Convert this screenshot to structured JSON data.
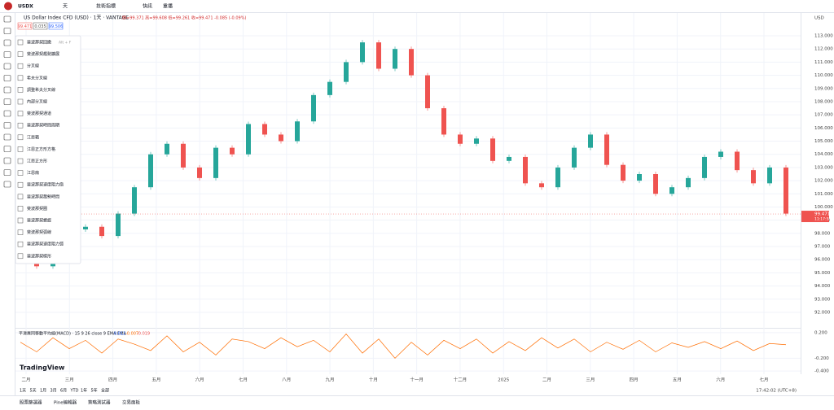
{
  "toolbar": {
    "symbol": "USDX",
    "interval": "天",
    "items": [
      "技術指標",
      "快訊",
      "重播"
    ],
    "currency": "USD"
  },
  "legend": {
    "title": "US Dollar Index CFD (USD) · 1天 · VANTAGE",
    "ohlc": "開=99.371 高=99.608 低=99.261 收=99.471 -0.085 (-0.09%)",
    "price_boxes": [
      "99.471",
      "0.035",
      "99.506"
    ]
  },
  "menu": {
    "items": [
      {
        "label": "斐波那契回撤",
        "shortcut": "Alt + F"
      },
      {
        "label": "斐波那契趨勢擴展"
      },
      {
        "label": "分叉線"
      },
      {
        "label": "希夫分叉線"
      },
      {
        "label": "調整希夫分叉線"
      },
      {
        "label": "內部分叉線"
      },
      {
        "label": "斐波那契通道"
      },
      {
        "label": "斐波那契時間周期"
      },
      {
        "label": "江恩箱"
      },
      {
        "label": "江恩正方形方格"
      },
      {
        "label": "江恩正方形"
      },
      {
        "label": "江恩扇"
      },
      {
        "label": "斐波那契速度阻力扇"
      },
      {
        "label": "斐波那契趨勢時間"
      },
      {
        "label": "斐波那契圈"
      },
      {
        "label": "斐波那契螺旋"
      },
      {
        "label": "斐波那契弧線"
      },
      {
        "label": "斐波那契速度阻力弧"
      },
      {
        "label": "斐波那契楔形"
      }
    ]
  },
  "chart": {
    "ylim": [
      91.5,
      113.7
    ],
    "yticks": [
      {
        "value": 92,
        "label": "92.000"
      },
      {
        "value": 93,
        "label": "93.000"
      },
      {
        "value": 94,
        "label": "94.000"
      },
      {
        "value": 95,
        "label": "95.000"
      },
      {
        "value": 96,
        "label": "96.000"
      },
      {
        "value": 97,
        "label": "97.000"
      },
      {
        "value": 98,
        "label": "98.000"
      },
      {
        "value": 99,
        "label": "99.000"
      },
      {
        "value": 100,
        "label": "100.000"
      },
      {
        "value": 101,
        "label": "101.000"
      },
      {
        "value": 102,
        "label": "102.000"
      },
      {
        "value": 103,
        "label": "103.000"
      },
      {
        "value": 104,
        "label": "104.000"
      },
      {
        "value": 105,
        "label": "105.000"
      },
      {
        "value": 106,
        "label": "106.000"
      },
      {
        "value": 107,
        "label": "107.000"
      },
      {
        "value": 108,
        "label": "108.000"
      },
      {
        "value": 109,
        "label": "109.000"
      },
      {
        "value": 110,
        "label": "110.000"
      },
      {
        "value": 111,
        "label": "111.000"
      },
      {
        "value": 112,
        "label": "112.000"
      },
      {
        "value": 113,
        "label": "113.000"
      }
    ],
    "prices": [
      99.2,
      95.5,
      96.5,
      98.3,
      98.5,
      97.8,
      99.5,
      101.5,
      104,
      104.8,
      103,
      102.2,
      104.5,
      104,
      106.3,
      105.5,
      105,
      106.5,
      108.5,
      109.5,
      111,
      112.5,
      110.5,
      112,
      110,
      107.5,
      105.5,
      104.8,
      105.2,
      103.5,
      103.8,
      101.8,
      101.5,
      103,
      104.5,
      105.5,
      103.2,
      102,
      102.5,
      101,
      101.5,
      102.2,
      103.8,
      104.2,
      102.8,
      101.8,
      103,
      99.5
    ],
    "last_price": {
      "value": 99.471,
      "label": "99.471"
    },
    "countdown": "11:17:58"
  },
  "macd": {
    "legend": "平滑異同移動平均線(MACD) · 15 9 26 close 9 EMA EMA",
    "readings": [
      "0.011",
      "-0.007",
      "-0.019"
    ],
    "ylim": [
      -0.45,
      0.25
    ],
    "yticks": [
      {
        "value": 0.2,
        "label": "0.200"
      },
      {
        "value": -0.2,
        "label": "-0.200"
      },
      {
        "value": -0.4,
        "label": "-0.400"
      }
    ],
    "values": [
      0.05,
      -0.1,
      0.12,
      -0.05,
      0.08,
      -0.12,
      0.1,
      0.02,
      -0.08,
      0.15,
      -0.1,
      0.05,
      -0.15,
      0.1,
      0.06,
      -0.05,
      0.12,
      -0.02,
      0.08,
      -0.1,
      0.18,
      -0.12,
      0.1,
      -0.2,
      0.05,
      -0.15,
      0.08,
      -0.05,
      0.1,
      -0.12,
      0.06,
      -0.08,
      0.12,
      -0.04,
      0.1,
      -0.1,
      0.05,
      -0.06,
      0.08,
      -0.1,
      0.04,
      -0.03,
      0.06,
      -0.05,
      0.07,
      -0.08,
      0.03,
      0.011
    ]
  },
  "xaxis": {
    "labels": [
      "二月",
      "三月",
      "四月",
      "五月",
      "六月",
      "七月",
      "八月",
      "九月",
      "十月",
      "十一月",
      "十二月",
      "2025",
      "二月",
      "三月",
      "四月",
      "五月",
      "六月",
      "七月"
    ]
  },
  "brand": "TradingView",
  "ranges": [
    "1天",
    "5天",
    "1月",
    "3月",
    "6月",
    "YTD",
    "1年",
    "5年",
    "全部"
  ],
  "clock": "17:42:02 (UTC+8)",
  "tabs": [
    "股票篩選器",
    "Pine編輯器",
    "策略測試器",
    "交易面板"
  ]
}
